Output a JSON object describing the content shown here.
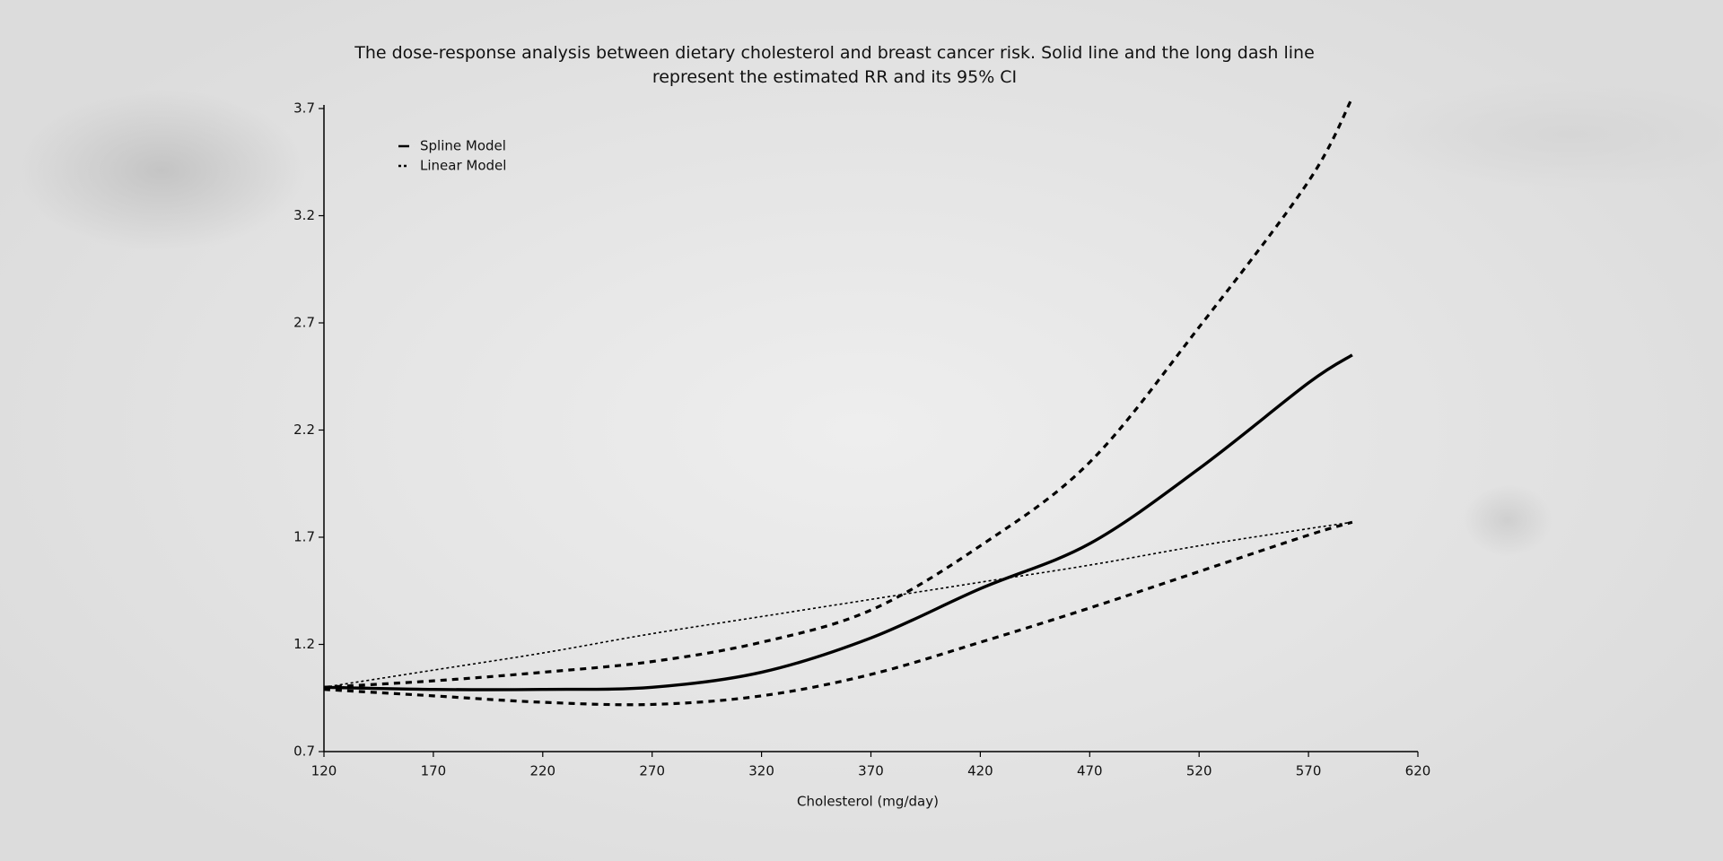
{
  "chart_data": {
    "type": "line",
    "title": "The dose-response analysis between dietary cholesterol and breast cancer risk. Solid line and the long dash line represent the estimated RR and its 95% CI",
    "x_label": "Cholesterol (mg/day)",
    "x": [
      120,
      170,
      220,
      270,
      320,
      370,
      420,
      470,
      520,
      570,
      590
    ],
    "series": [
      {
        "name": "Spline Model",
        "color": "#000000",
        "values": [
          1.0,
          0.99,
          0.99,
          1.0,
          1.07,
          1.23,
          1.46,
          1.67,
          2.02,
          2.42,
          2.55
        ]
      },
      {
        "color": "#000000",
        "dash": "7,6",
        "values": [
          1.0,
          1.03,
          1.07,
          1.12,
          1.21,
          1.36,
          1.66,
          2.05,
          2.68,
          3.36,
          3.75
        ]
      },
      {
        "color": "#000000",
        "dash": "7,6",
        "values": [
          0.99,
          0.96,
          0.93,
          0.92,
          0.96,
          1.06,
          1.21,
          1.37,
          1.54,
          1.71,
          1.77
        ]
      },
      {
        "name": "Linear Model",
        "color": "#000000",
        "dash": "3,3",
        "values": [
          1.0,
          1.08,
          1.16,
          1.25,
          1.33,
          1.41,
          1.49,
          1.57,
          1.66,
          1.74,
          1.77
        ]
      }
    ],
    "xlim": [
      120,
      620
    ],
    "xticks": [
      120,
      170,
      220,
      270,
      320,
      370,
      420,
      470,
      520,
      570,
      620
    ],
    "ylim": [
      0.7,
      3.7
    ],
    "yticks": [
      0.7,
      1.2,
      1.7,
      2.2,
      2.7,
      3.2,
      3.7
    ],
    "grid": false
  }
}
